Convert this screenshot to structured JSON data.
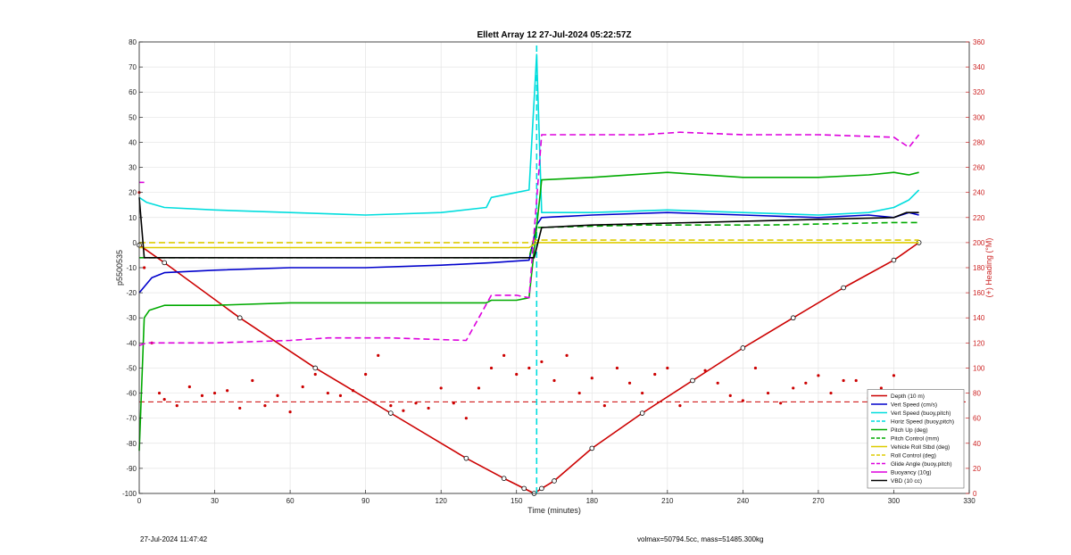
{
  "chart_data": {
    "type": "line",
    "title": "Ellett Array 12 27-Jul-2024 05:22:57Z",
    "xlabel": "Time (minutes)",
    "ylabel_left": "p5500535",
    "ylabel_right": "(+) Heading (°M)",
    "xlim": [
      0,
      330
    ],
    "ylim_left": [
      -100,
      80
    ],
    "ylim_right": [
      0,
      360
    ],
    "xticks": [
      0,
      30,
      60,
      90,
      120,
      150,
      180,
      210,
      240,
      270,
      300,
      330
    ],
    "yticks_left": [
      -100,
      -90,
      -80,
      -70,
      -60,
      -50,
      -40,
      -30,
      -20,
      -10,
      0,
      10,
      20,
      30,
      40,
      50,
      60,
      70,
      80
    ],
    "yticks_right": [
      0,
      20,
      40,
      60,
      80,
      100,
      120,
      140,
      160,
      180,
      200,
      220,
      240,
      260,
      280,
      300,
      320,
      340,
      360
    ],
    "grid": true,
    "legend_position": "bottom-right",
    "series": [
      {
        "name": "Depth (10 m)",
        "color": "#cc0000",
        "dash": "solid",
        "x": [
          0,
          10,
          40,
          70,
          100,
          130,
          145,
          153,
          157,
          160,
          165,
          180,
          200,
          220,
          240,
          260,
          280,
          300,
          310
        ],
        "y": [
          -1,
          -8,
          -30,
          -50,
          -68,
          -86,
          -94,
          -98,
          -100,
          -98,
          -95,
          -82,
          -68,
          -55,
          -42,
          -30,
          -18,
          -7,
          0
        ]
      },
      {
        "name": "Vert Speed (cm/s)",
        "color": "#0000cc",
        "dash": "solid",
        "x": [
          0,
          5,
          10,
          30,
          60,
          90,
          120,
          140,
          155,
          158,
          160,
          180,
          210,
          240,
          270,
          290,
          300,
          306,
          310
        ],
        "y": [
          -20,
          -14,
          -12,
          -11,
          -10,
          -10,
          -9,
          -8,
          -7,
          7,
          10,
          11,
          12,
          11,
          10,
          11,
          10,
          12,
          11
        ]
      },
      {
        "name": "Vert Speed (buoy,pitch)",
        "color": "#00dddd",
        "dash": "solid",
        "x": [
          0,
          3,
          10,
          30,
          60,
          90,
          120,
          138,
          140,
          150,
          155,
          158,
          160,
          180,
          210,
          240,
          270,
          290,
          300,
          306,
          310
        ],
        "y": [
          18,
          16,
          14,
          13,
          12,
          11,
          12,
          14,
          18,
          20,
          21,
          75,
          12,
          12,
          13,
          12,
          11,
          12,
          14,
          17,
          21
        ]
      },
      {
        "name": "Horiz Speed (buoy,pitch)",
        "color": "#00dddd",
        "dash": "dashed",
        "x": [
          158,
          158
        ],
        "y": [
          -100,
          80
        ]
      },
      {
        "name": "Pitch Up (deg)",
        "color": "#00aa00",
        "dash": "solid",
        "x": [
          0,
          2,
          4,
          10,
          30,
          60,
          90,
          120,
          138,
          140,
          150,
          155,
          160,
          180,
          210,
          240,
          270,
          290,
          300,
          306,
          310
        ],
        "y": [
          -83,
          -30,
          -27,
          -25,
          -25,
          -24,
          -24,
          -24,
          -24,
          -23,
          -23,
          -22,
          25,
          26,
          28,
          26,
          26,
          27,
          28,
          27,
          28
        ]
      },
      {
        "name": "Pitch Control (mm)",
        "color": "#00aa00",
        "dash": "dashed",
        "x": [
          0,
          10,
          60,
          120,
          155,
          158,
          200,
          250,
          300,
          310
        ],
        "y": [
          -6,
          -6,
          -6,
          -6,
          -6,
          6,
          7,
          7,
          8,
          8
        ]
      },
      {
        "name": "Vehicle Roll Stbd (deg)",
        "color": "#ddcc00",
        "dash": "solid",
        "x": [
          0,
          5,
          10,
          20,
          60,
          100,
          140,
          155,
          158,
          180,
          220,
          260,
          300,
          310
        ],
        "y": [
          -2,
          -2,
          -2,
          -2,
          -2,
          -2,
          -2,
          -2,
          0,
          0,
          0,
          0,
          0,
          0
        ]
      },
      {
        "name": "Roll Control (deg)",
        "color": "#ddcc00",
        "dash": "dashed",
        "x": [
          0,
          10,
          20,
          60,
          100,
          140,
          155,
          158,
          200,
          250,
          300,
          310
        ],
        "y": [
          0,
          0,
          0,
          0,
          0,
          0,
          0,
          1,
          1,
          1,
          1,
          1
        ]
      },
      {
        "name": "Glide Angle (buoy,pitch)",
        "color": "#dd00dd",
        "dash": "dashed",
        "x": [
          0,
          3,
          10,
          30,
          60,
          75,
          80,
          100,
          130,
          140,
          150,
          155,
          160,
          180,
          200,
          215,
          240,
          270,
          300,
          306,
          310
        ],
        "y": [
          -41,
          -40,
          -40,
          -40,
          -39,
          -38,
          -38,
          -38,
          -39,
          -21,
          -21,
          -22,
          43,
          43,
          43,
          44,
          43,
          43,
          42,
          38,
          43
        ]
      },
      {
        "name": "Buoyancy (10g)",
        "color": "#dd00dd",
        "dash": "solid",
        "x": [
          0,
          2
        ],
        "y": [
          24,
          24
        ]
      },
      {
        "name": "VBD (10 cc)",
        "color": "#000000",
        "dash": "solid",
        "x": [
          0,
          2,
          5,
          60,
          120,
          155,
          157,
          160,
          180,
          220,
          260,
          300,
          305,
          310
        ],
        "y": [
          18,
          -6,
          -6,
          -6,
          -6,
          -6,
          -6,
          6,
          7,
          8,
          9,
          10,
          12,
          12
        ]
      }
    ],
    "heading_series": {
      "name": "(+) Heading (°M)",
      "color": "#cc0000",
      "reference_heading": 73,
      "x": [
        0,
        2,
        5,
        8,
        10,
        15,
        20,
        25,
        30,
        35,
        40,
        45,
        50,
        55,
        60,
        65,
        70,
        75,
        80,
        85,
        90,
        95,
        100,
        105,
        110,
        115,
        120,
        125,
        130,
        135,
        140,
        145,
        150,
        155,
        160,
        165,
        170,
        175,
        180,
        185,
        190,
        195,
        200,
        205,
        210,
        215,
        220,
        225,
        230,
        235,
        240,
        245,
        250,
        255,
        260,
        265,
        270,
        275,
        280,
        285,
        290,
        295,
        300,
        305,
        310
      ],
      "y": [
        240,
        180,
        120,
        80,
        75,
        70,
        85,
        78,
        80,
        82,
        68,
        90,
        70,
        78,
        65,
        85,
        95,
        80,
        78,
        82,
        95,
        110,
        70,
        66,
        72,
        68,
        84,
        72,
        60,
        84,
        100,
        110,
        95,
        100,
        105,
        90,
        110,
        80,
        92,
        70,
        100,
        88,
        80,
        95,
        100,
        70,
        90,
        98,
        88,
        78,
        74,
        100,
        80,
        72,
        84,
        88,
        94,
        80,
        90,
        90,
        76,
        84,
        94,
        78,
        80
      ]
    }
  },
  "footer": {
    "left": "27-Jul-2024 11:47:42",
    "right": "volmax=50794.5cc, mass=51485.300kg"
  }
}
